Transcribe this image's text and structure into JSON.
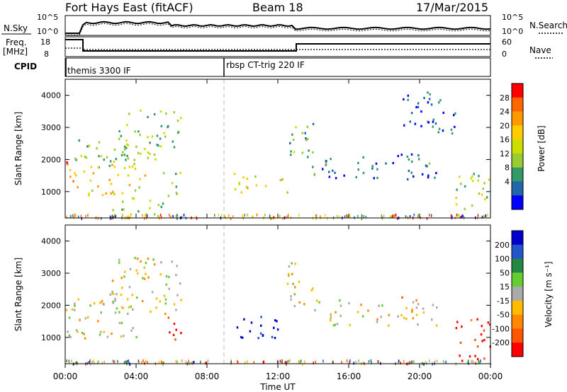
{
  "header": {
    "station": "Fort Hays East (fitACF)",
    "beam": "Beam 18",
    "date": "17/Mar/2015"
  },
  "top_panels": {
    "nsky_label": "N.Sky",
    "nsky_ticks": [
      "10^5",
      "10^0"
    ],
    "nsearch_label": "N.Search",
    "nsearch_ticks": [
      "10^5",
      "10^0"
    ],
    "freq_label_1": "Freq.",
    "freq_label_2": "[MHz]",
    "freq_ticks": [
      "18",
      "8"
    ],
    "nave_label": "Nave",
    "nave_ticks": [
      "60",
      "0"
    ],
    "cpid_label": "CPID",
    "cpid_segments": [
      {
        "label": "themis 3300 IF",
        "start_hour": 0
      },
      {
        "label": "rbsp CT-trig 220 IF",
        "start_hour": 9
      }
    ]
  },
  "x_axis": {
    "label": "Time UT",
    "ticks": [
      "00:00",
      "04:00",
      "08:00",
      "12:00",
      "16:00",
      "20:00",
      "00:00"
    ]
  },
  "chart_data": [
    {
      "type": "heatmap",
      "name": "power",
      "ylabel": "Slant Range [km]",
      "yticks": [
        "4000",
        "3000",
        "2000",
        "1000"
      ],
      "ylim": [
        180,
        4500
      ],
      "xlim_hours": [
        0,
        24
      ],
      "colorbar_label": "Power [dB]",
      "colorbar_ticks": [
        "28",
        "24",
        "20",
        "16",
        "12",
        "8",
        "4"
      ],
      "colorbar_colors": [
        "#ff0000",
        "#ff6600",
        "#ff9900",
        "#ffcc00",
        "#ccdd00",
        "#99cc33",
        "#339966",
        "#2266aa",
        "#0000ff"
      ],
      "regions": [
        {
          "t0": 0.0,
          "t1": 1.0,
          "r0": 1100,
          "r1": 2000,
          "level": 0.75
        },
        {
          "t0": 0.5,
          "t1": 3.5,
          "r0": 1700,
          "r1": 2700,
          "level": 0.35
        },
        {
          "t0": 1.0,
          "t1": 4.5,
          "r0": 900,
          "r1": 1900,
          "level": 0.6
        },
        {
          "t0": 2.5,
          "t1": 5.5,
          "r0": 200,
          "r1": 900,
          "level": 0.45
        },
        {
          "t0": 3.0,
          "t1": 6.5,
          "r0": 1800,
          "r1": 3600,
          "level": 0.4
        },
        {
          "t0": 5.5,
          "t1": 6.5,
          "r0": 900,
          "r1": 1800,
          "level": 0.45
        },
        {
          "t0": 9.5,
          "t1": 12.5,
          "r0": 1000,
          "r1": 1600,
          "level": 0.55
        },
        {
          "t0": 12.5,
          "t1": 14.0,
          "r0": 1800,
          "r1": 3300,
          "level": 0.3
        },
        {
          "t0": 14.0,
          "t1": 21.0,
          "r0": 1400,
          "r1": 2200,
          "level": 0.2
        },
        {
          "t0": 19.0,
          "t1": 22.0,
          "r0": 2800,
          "r1": 4200,
          "level": 0.15
        },
        {
          "t0": 22.0,
          "t1": 24.0,
          "r0": 300,
          "r1": 1600,
          "level": 0.45
        }
      ]
    },
    {
      "type": "heatmap",
      "name": "velocity",
      "ylabel": "Slant Range [km]",
      "yticks": [
        "4000",
        "3000",
        "2000",
        "1000"
      ],
      "ylim": [
        180,
        4500
      ],
      "xlim_hours": [
        0,
        24
      ],
      "colorbar_label": "Velocity [m s⁻¹]",
      "colorbar_ticks": [
        "200",
        "100",
        "50",
        "15",
        "-15",
        "-50",
        "-100",
        "-200"
      ],
      "colorbar_colors": [
        "#0000cc",
        "#2255cc",
        "#228844",
        "#66cc33",
        "#aaaaaa",
        "#ffbb00",
        "#ff8800",
        "#ff5500",
        "#ff0000"
      ],
      "regions": [
        {
          "t0": 0.0,
          "t1": 4.0,
          "r0": 1000,
          "r1": 2400,
          "level": 0.45
        },
        {
          "t0": 2.5,
          "t1": 6.5,
          "r0": 1800,
          "r1": 3600,
          "level": 0.45
        },
        {
          "t0": 5.5,
          "t1": 6.5,
          "r0": 900,
          "r1": 1800,
          "level": 0.1
        },
        {
          "t0": 9.5,
          "t1": 12.5,
          "r0": 1000,
          "r1": 1700,
          "level": 0.95
        },
        {
          "t0": 12.5,
          "t1": 14.0,
          "r0": 2000,
          "r1": 3400,
          "level": 0.45
        },
        {
          "t0": 14.0,
          "t1": 21.0,
          "r0": 1400,
          "r1": 2200,
          "level": 0.45
        },
        {
          "t0": 18.5,
          "t1": 19.0,
          "r0": 2200,
          "r1": 2500,
          "level": 0.05
        },
        {
          "t0": 22.0,
          "t1": 24.0,
          "r0": 300,
          "r1": 1600,
          "level": 0.08
        }
      ]
    }
  ]
}
